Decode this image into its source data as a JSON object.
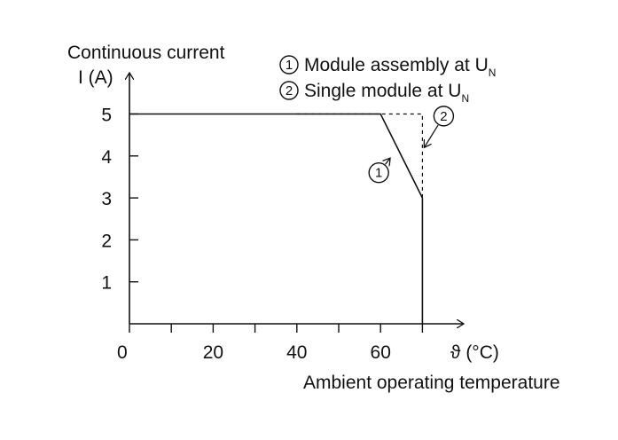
{
  "chart_data": {
    "type": "line",
    "ylabel_line1": "Continuous current",
    "ylabel_line2": "I (A)",
    "xlabel_symbol": "ϑ (°C)",
    "xlabel": "Ambient operating temperature",
    "x_ticks": [
      0,
      20,
      40,
      60
    ],
    "x_minor_ticks": [
      10,
      30,
      50,
      70
    ],
    "y_ticks": [
      1,
      2,
      3,
      4,
      5
    ],
    "xlim": [
      0,
      80
    ],
    "ylim": [
      0,
      5.5
    ],
    "grid": false,
    "legend": [
      {
        "marker": "1",
        "text": "Module assembly at U",
        "subscript": "N"
      },
      {
        "marker": "2",
        "text": "Single module at U",
        "subscript": "N"
      }
    ],
    "series": [
      {
        "marker": "1",
        "style": "solid",
        "x": [
          0,
          60,
          70
        ],
        "y": [
          5,
          5,
          3
        ]
      },
      {
        "marker": "2",
        "style": "dashed",
        "x": [
          40,
          70,
          70
        ],
        "y": [
          5,
          5,
          3
        ]
      }
    ],
    "boundary": {
      "x": [
        70,
        70
      ],
      "y": [
        3,
        0
      ],
      "style": "solid"
    },
    "annotations": [
      {
        "marker": "1",
        "points_to": [
          65,
          4
        ]
      },
      {
        "marker": "2",
        "points_to": [
          70,
          4.2
        ]
      }
    ]
  }
}
